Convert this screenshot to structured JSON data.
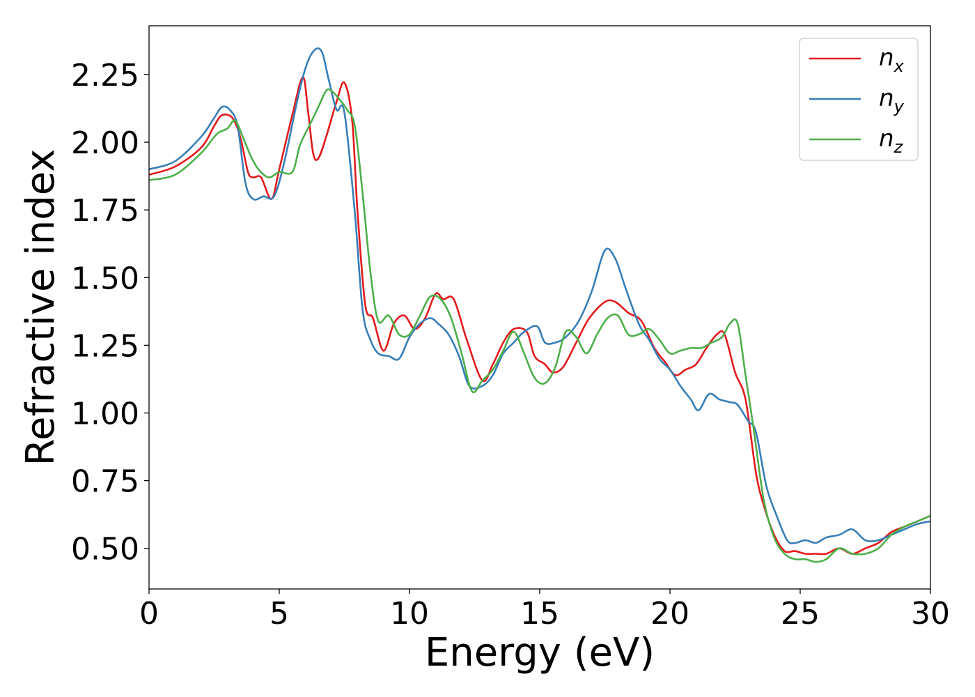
{
  "chart_data": {
    "type": "line",
    "title": "",
    "xlabel": "Energy (eV)",
    "ylabel": "Refractive index",
    "xlim": [
      0,
      30
    ],
    "ylim": [
      0.35,
      2.43
    ],
    "xticks": [
      0,
      5,
      10,
      15,
      20,
      25,
      30
    ],
    "yticks": [
      0.5,
      0.75,
      1.0,
      1.25,
      1.5,
      1.75,
      2.0,
      2.25
    ],
    "xtick_labels": [
      "0",
      "5",
      "10",
      "15",
      "20",
      "25",
      "30"
    ],
    "ytick_labels": [
      "0.50",
      "0.75",
      "1.00",
      "1.25",
      "1.50",
      "1.75",
      "2.00",
      "2.25"
    ],
    "grid": false,
    "legend_position": "top-right",
    "series": [
      {
        "name": "n",
        "subscript": "x",
        "color": "#e41a1c",
        "x": [
          0,
          1,
          2,
          2.5,
          2.8,
          3.2,
          3.5,
          3.8,
          4.0,
          4.3,
          4.7,
          5.0,
          5.5,
          5.9,
          6.1,
          6.3,
          6.5,
          6.8,
          7.2,
          7.5,
          7.8,
          8.0,
          8.3,
          8.6,
          9.0,
          9.4,
          9.8,
          10.2,
          10.6,
          11.0,
          11.3,
          11.7,
          12.2,
          12.8,
          13.2,
          13.6,
          14.0,
          14.5,
          14.8,
          15.2,
          15.5,
          15.9,
          16.4,
          16.9,
          17.5,
          17.9,
          18.4,
          18.9,
          19.4,
          19.8,
          20.2,
          20.6,
          21.0,
          21.4,
          21.8,
          22.1,
          22.5,
          22.9,
          23.3,
          23.6,
          24.0,
          24.4,
          24.8,
          25.2,
          25.6,
          26.0,
          26.5,
          27.0,
          27.5,
          28.0,
          28.5,
          29.0,
          29.5,
          30.0
        ],
        "y": [
          1.88,
          1.91,
          1.98,
          2.06,
          2.1,
          2.09,
          2.02,
          1.89,
          1.87,
          1.87,
          1.79,
          1.9,
          2.1,
          2.24,
          2.12,
          1.96,
          1.94,
          2.02,
          2.15,
          2.22,
          2.08,
          1.75,
          1.4,
          1.35,
          1.23,
          1.33,
          1.36,
          1.31,
          1.35,
          1.44,
          1.42,
          1.42,
          1.27,
          1.12,
          1.18,
          1.26,
          1.31,
          1.3,
          1.21,
          1.18,
          1.15,
          1.17,
          1.26,
          1.35,
          1.41,
          1.41,
          1.37,
          1.34,
          1.24,
          1.19,
          1.14,
          1.16,
          1.18,
          1.24,
          1.29,
          1.29,
          1.15,
          1.05,
          0.78,
          0.66,
          0.55,
          0.49,
          0.49,
          0.48,
          0.48,
          0.48,
          0.5,
          0.48,
          0.5,
          0.52,
          0.56,
          0.58,
          0.6,
          0.62
        ]
      },
      {
        "name": "n",
        "subscript": "y",
        "color": "#377eb8",
        "x": [
          0,
          1,
          2,
          2.5,
          2.8,
          3.1,
          3.4,
          3.7,
          4.0,
          4.4,
          4.8,
          5.2,
          5.8,
          6.2,
          6.6,
          6.9,
          7.2,
          7.5,
          7.9,
          8.2,
          8.5,
          8.8,
          9.2,
          9.6,
          10.0,
          10.4,
          10.8,
          11.1,
          11.5,
          11.9,
          12.3,
          12.8,
          13.2,
          13.6,
          14.0,
          14.4,
          14.9,
          15.2,
          15.6,
          16.0,
          16.5,
          17.0,
          17.5,
          17.9,
          18.3,
          18.8,
          19.2,
          19.6,
          20.0,
          20.4,
          20.8,
          21.1,
          21.5,
          21.9,
          22.3,
          22.6,
          23.0,
          23.3,
          23.7,
          24.1,
          24.5,
          24.8,
          25.2,
          25.6,
          26.0,
          26.5,
          27.0,
          27.5,
          28.0,
          28.5,
          29.0,
          29.5,
          30.0
        ],
        "y": [
          1.9,
          1.93,
          2.02,
          2.09,
          2.13,
          2.12,
          2.06,
          1.85,
          1.79,
          1.8,
          1.8,
          1.93,
          2.2,
          2.32,
          2.34,
          2.23,
          2.12,
          2.11,
          1.74,
          1.38,
          1.27,
          1.22,
          1.21,
          1.2,
          1.28,
          1.33,
          1.35,
          1.33,
          1.29,
          1.21,
          1.1,
          1.1,
          1.14,
          1.22,
          1.26,
          1.3,
          1.32,
          1.26,
          1.26,
          1.28,
          1.34,
          1.45,
          1.6,
          1.57,
          1.46,
          1.33,
          1.27,
          1.2,
          1.16,
          1.1,
          1.05,
          1.01,
          1.07,
          1.05,
          1.04,
          1.03,
          0.97,
          0.93,
          0.73,
          0.62,
          0.53,
          0.52,
          0.53,
          0.52,
          0.54,
          0.55,
          0.57,
          0.53,
          0.53,
          0.55,
          0.57,
          0.59,
          0.6
        ]
      },
      {
        "name": "n",
        "subscript": "z",
        "color": "#4daf4a",
        "x": [
          0,
          1,
          2,
          2.6,
          3.0,
          3.3,
          3.6,
          3.9,
          4.2,
          4.6,
          5.0,
          5.5,
          5.8,
          6.2,
          6.5,
          6.8,
          7.0,
          7.3,
          7.6,
          7.9,
          8.2,
          8.5,
          8.8,
          9.2,
          9.6,
          10.0,
          10.4,
          10.8,
          11.2,
          11.6,
          12.0,
          12.4,
          12.8,
          13.2,
          13.6,
          14.0,
          14.4,
          14.8,
          15.2,
          15.6,
          16.0,
          16.4,
          16.8,
          17.2,
          17.6,
          18.0,
          18.4,
          18.8,
          19.2,
          19.6,
          20.0,
          20.4,
          20.8,
          21.2,
          21.6,
          22.0,
          22.3,
          22.6,
          22.9,
          23.2,
          23.6,
          24.0,
          24.4,
          24.8,
          25.2,
          25.6,
          26.0,
          26.5,
          27.0,
          27.5,
          28.0,
          28.5,
          29.0,
          29.5,
          30.0
        ],
        "y": [
          1.86,
          1.88,
          1.96,
          2.03,
          2.05,
          2.08,
          2.02,
          1.95,
          1.9,
          1.87,
          1.89,
          1.89,
          1.99,
          2.07,
          2.13,
          2.19,
          2.19,
          2.16,
          2.12,
          2.06,
          1.81,
          1.52,
          1.34,
          1.36,
          1.29,
          1.29,
          1.36,
          1.43,
          1.42,
          1.35,
          1.22,
          1.08,
          1.12,
          1.16,
          1.23,
          1.3,
          1.22,
          1.13,
          1.11,
          1.17,
          1.3,
          1.28,
          1.22,
          1.29,
          1.35,
          1.36,
          1.29,
          1.29,
          1.31,
          1.27,
          1.22,
          1.23,
          1.24,
          1.24,
          1.26,
          1.28,
          1.33,
          1.33,
          1.14,
          0.95,
          0.68,
          0.54,
          0.48,
          0.46,
          0.46,
          0.45,
          0.46,
          0.5,
          0.48,
          0.48,
          0.5,
          0.55,
          0.58,
          0.6,
          0.62
        ]
      }
    ]
  }
}
